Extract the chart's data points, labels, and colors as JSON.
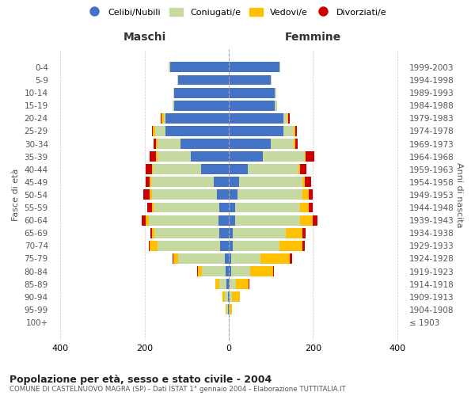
{
  "age_groups": [
    "100+",
    "95-99",
    "90-94",
    "85-89",
    "80-84",
    "75-79",
    "70-74",
    "65-69",
    "60-64",
    "55-59",
    "50-54",
    "45-49",
    "40-44",
    "35-39",
    "30-34",
    "25-29",
    "20-24",
    "15-19",
    "10-14",
    "5-9",
    "0-4"
  ],
  "birth_years": [
    "≤ 1903",
    "1904-1908",
    "1909-1913",
    "1914-1918",
    "1919-1923",
    "1924-1928",
    "1929-1933",
    "1934-1938",
    "1939-1943",
    "1944-1948",
    "1949-1953",
    "1954-1958",
    "1959-1963",
    "1964-1968",
    "1969-1973",
    "1974-1978",
    "1979-1983",
    "1984-1988",
    "1989-1993",
    "1994-1998",
    "1999-2003"
  ],
  "maschi": {
    "celibi": [
      0,
      2,
      2,
      5,
      8,
      10,
      20,
      22,
      25,
      23,
      28,
      35,
      65,
      90,
      115,
      150,
      150,
      130,
      130,
      120,
      140
    ],
    "coniugati": [
      0,
      3,
      8,
      18,
      55,
      110,
      150,
      155,
      165,
      155,
      155,
      150,
      115,
      80,
      55,
      25,
      5,
      3,
      2,
      2,
      2
    ],
    "vedovi": [
      0,
      2,
      5,
      8,
      10,
      12,
      18,
      5,
      8,
      5,
      5,
      3,
      3,
      3,
      3,
      5,
      5,
      0,
      0,
      0,
      0
    ],
    "divorziati": [
      0,
      0,
      0,
      0,
      2,
      2,
      2,
      5,
      8,
      10,
      15,
      10,
      15,
      15,
      5,
      2,
      2,
      0,
      0,
      0,
      0
    ]
  },
  "femmine": {
    "nubili": [
      0,
      0,
      2,
      2,
      5,
      5,
      10,
      10,
      15,
      15,
      20,
      25,
      45,
      80,
      100,
      130,
      130,
      110,
      110,
      100,
      120
    ],
    "coniugate": [
      0,
      2,
      5,
      15,
      45,
      70,
      110,
      125,
      155,
      155,
      155,
      150,
      120,
      100,
      55,
      25,
      10,
      5,
      3,
      2,
      2
    ],
    "vedove": [
      0,
      5,
      20,
      30,
      55,
      70,
      55,
      40,
      30,
      20,
      15,
      5,
      5,
      3,
      3,
      3,
      2,
      0,
      0,
      0,
      0
    ],
    "divorziate": [
      0,
      0,
      0,
      2,
      2,
      5,
      5,
      8,
      10,
      10,
      10,
      15,
      15,
      20,
      5,
      3,
      2,
      0,
      0,
      0,
      0
    ]
  },
  "colors": {
    "celibi": "#4472c4",
    "coniugati": "#c5d9a0",
    "vedovi": "#ffc000",
    "divorziati": "#cc0000"
  },
  "xlim": 420,
  "title": "Popolazione per età, sesso e stato civile - 2004",
  "subtitle": "COMUNE DI CASTELNUOVO MAGRA (SP) - Dati ISTAT 1° gennaio 2004 - Elaborazione TUTTITALIA.IT",
  "ylabel_left": "Fasce di età",
  "ylabel_right": "Anni di nascita",
  "xlabel_left": "Maschi",
  "xlabel_right": "Femmine"
}
